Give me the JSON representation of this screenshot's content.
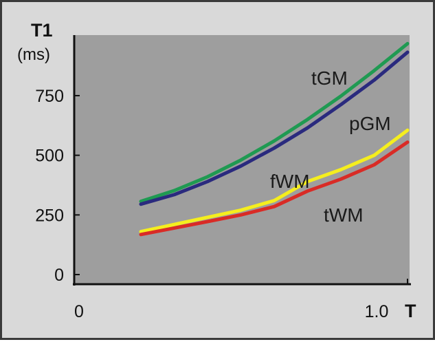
{
  "chart_data": {
    "type": "line",
    "title": "",
    "ylabel": "T1",
    "yunit": "(ms)",
    "xunit": "T",
    "xlim": [
      0,
      1.0
    ],
    "ylim": [
      0,
      1000
    ],
    "x_ticks": [
      {
        "value": 0,
        "label": "0"
      },
      {
        "value": 1.0,
        "label": "1.0"
      }
    ],
    "y_ticks": [
      {
        "value": 0,
        "label": "0"
      },
      {
        "value": 250,
        "label": "250"
      },
      {
        "value": 500,
        "label": "500"
      },
      {
        "value": 750,
        "label": "750"
      }
    ],
    "grid": false,
    "plot_background": "#9e9e9e",
    "series": [
      {
        "name": "tGM",
        "color": "#1f9a52",
        "x": [
          0.2,
          0.3,
          0.4,
          0.5,
          0.6,
          0.7,
          0.8,
          0.9,
          1.0
        ],
        "y": [
          307,
          352,
          410,
          480,
          560,
          650,
          748,
          855,
          968
        ]
      },
      {
        "name": "pGM",
        "color": "#2a2a7e",
        "x": [
          0.2,
          0.3,
          0.4,
          0.5,
          0.6,
          0.7,
          0.8,
          0.9,
          1.0
        ],
        "y": [
          295,
          335,
          390,
          455,
          530,
          615,
          712,
          815,
          932
        ]
      },
      {
        "name": "fWM",
        "color": "#f5ee1e",
        "x": [
          0.2,
          0.3,
          0.4,
          0.5,
          0.6,
          0.7,
          0.8,
          0.9,
          1.0
        ],
        "y": [
          180,
          210,
          240,
          270,
          310,
          390,
          440,
          500,
          605
        ]
      },
      {
        "name": "tWM",
        "color": "#d92b26",
        "x": [
          0.2,
          0.3,
          0.4,
          0.5,
          0.6,
          0.7,
          0.8,
          0.9,
          1.0
        ],
        "y": [
          168,
          195,
          222,
          250,
          285,
          350,
          400,
          460,
          555
        ]
      }
    ]
  }
}
